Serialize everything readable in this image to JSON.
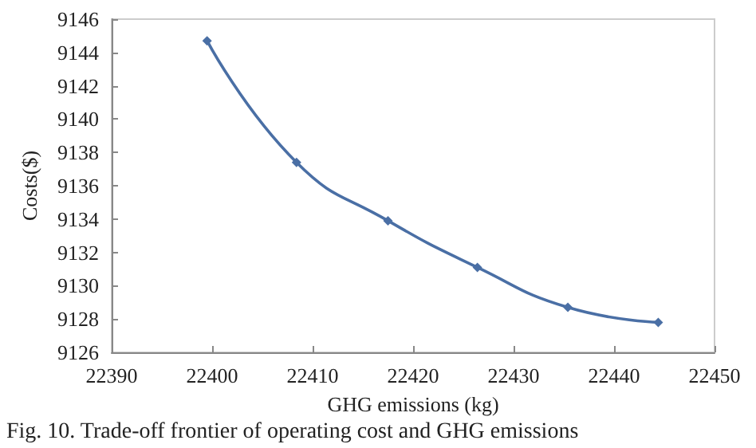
{
  "chart_data": {
    "type": "line",
    "xlabel": "GHG emissions (kg)",
    "ylabel": "Costs($)",
    "annotations": [
      "Fig. 10. Trade-off frontier of operating cost and GHG emissions"
    ],
    "x": [
      22399.5,
      22408.4,
      22417.5,
      22426.4,
      22435.4,
      22444.4
    ],
    "series": [
      {
        "color": "#4a6fa5",
        "values": [
          9144.7,
          9137.4,
          9133.9,
          9131.1,
          9128.7,
          9127.8
        ]
      }
    ],
    "xlim": [
      22390,
      22450
    ],
    "xticks": [
      22390,
      22400,
      22410,
      22420,
      22430,
      22440,
      22450
    ],
    "ylim": [
      9126,
      9146
    ],
    "yticks": [
      9126,
      9128,
      9130,
      9132,
      9134,
      9136,
      9138,
      9140,
      9142,
      9144,
      9146
    ],
    "grid": false,
    "marker": "diamond",
    "line_style": "solid"
  }
}
